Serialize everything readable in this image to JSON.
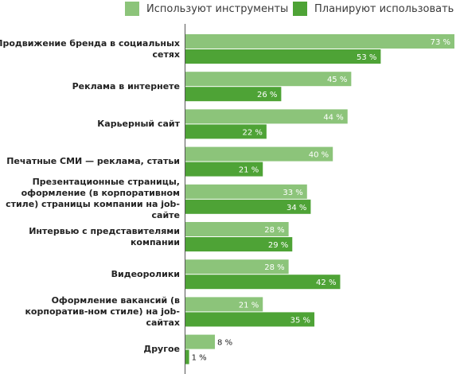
{
  "chart_data": {
    "type": "bar",
    "orientation": "horizontal",
    "categories": [
      "Продвижение бренда в социальных сетях",
      "Реклама в интернете",
      "Карьерный сайт",
      "Печатные СМИ — реклама, статьи",
      "Презентационные страницы, оформление (в корпоративном стиле) страницы компании на job-сайте",
      "Интервью с представителями компании",
      "Видеоролики",
      "Оформление вакансий (в корпоратив-ном стиле) на job-сайтах",
      "Другое"
    ],
    "series": [
      {
        "name": "Используют инструменты",
        "color": "#8cc47a",
        "values": [
          73,
          45,
          44,
          40,
          33,
          28,
          28,
          21,
          8
        ]
      },
      {
        "name": "Планируют использовать",
        "color": "#4ea336",
        "values": [
          53,
          26,
          22,
          21,
          34,
          29,
          42,
          35,
          1
        ]
      }
    ],
    "value_suffix": " %",
    "xlim": [
      0,
      75
    ],
    "legend_position": "top",
    "grid": false
  }
}
